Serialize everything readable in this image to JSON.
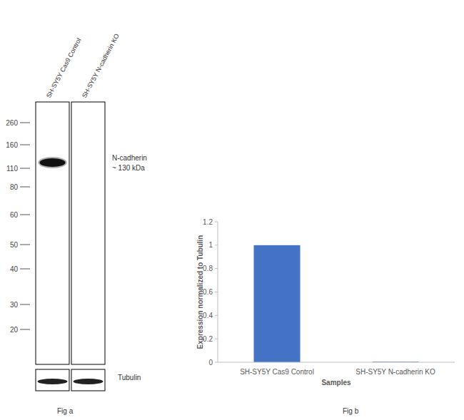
{
  "blot": {
    "caption": "Fig a",
    "lanes": [
      {
        "label": "SH-SY5Y Cas9 Control",
        "n_cadherin_band": true
      },
      {
        "label": "SH-SY5Y N-cadherin KO",
        "n_cadherin_band": false
      }
    ],
    "markers": [
      260,
      160,
      110,
      80,
      60,
      50,
      40,
      30,
      20
    ],
    "band_label": "N-cadherin",
    "band_size": "~ 130 kDa",
    "loading_control": "Tubulin"
  },
  "chart_data": {
    "type": "bar",
    "caption": "Fig b",
    "x_label": "Samples",
    "y_label": "Expression normalized to Tubulin",
    "categories": [
      "SH-SY5Y Cas9 Control",
      "SH-SY5Y N-cadherin KO"
    ],
    "values": [
      1.0,
      0.005
    ],
    "color": "#4472c4",
    "ylim": [
      0,
      1.2
    ],
    "yticks": [
      0,
      0.2,
      0.4,
      0.6,
      0.8,
      1,
      1.2
    ],
    "grid": false
  }
}
